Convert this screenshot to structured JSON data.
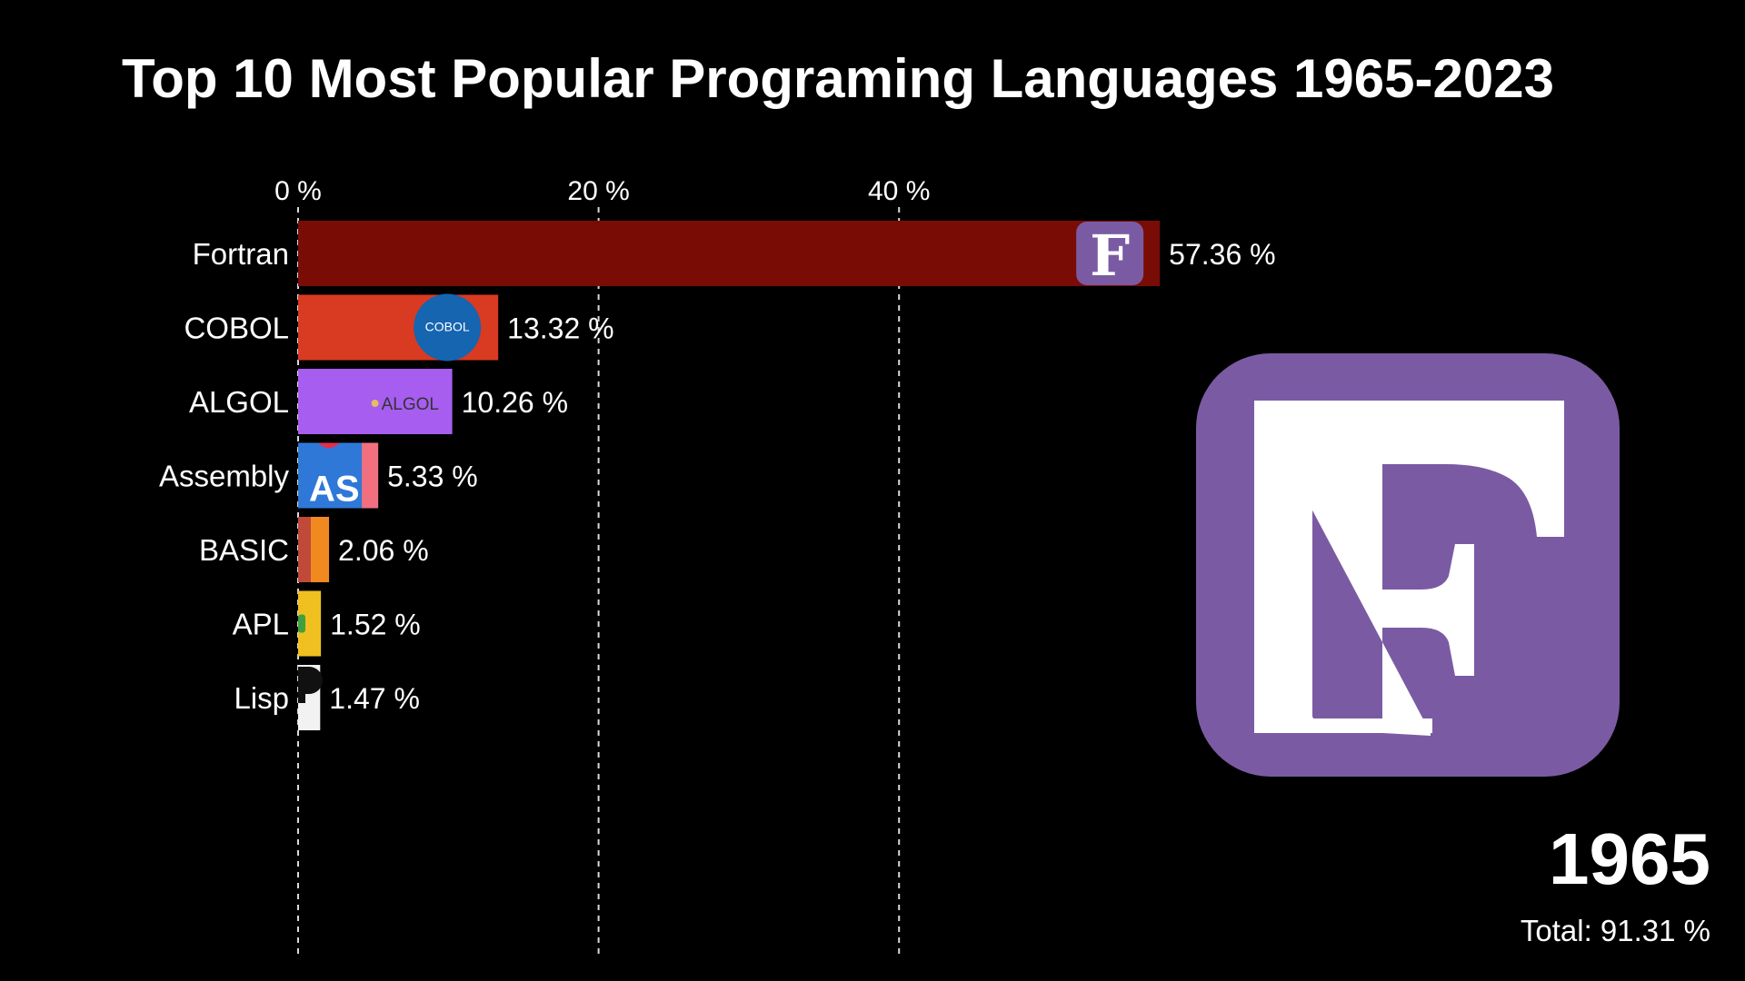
{
  "title": "Top 10 Most Popular Programing Languages 1965-2023",
  "chart_data": {
    "type": "bar",
    "orientation": "horizontal",
    "categories": [
      "Fortran",
      "COBOL",
      "ALGOL",
      "Assembly",
      "BASIC",
      "APL",
      "Lisp"
    ],
    "values": [
      57.36,
      13.32,
      10.26,
      5.33,
      2.06,
      1.52,
      1.47
    ],
    "value_labels": [
      "57.36 %",
      "13.32 %",
      "10.26 %",
      "5.33 %",
      "2.06 %",
      "1.52 %",
      "1.47 %"
    ],
    "colors": [
      "#7a0c06",
      "#d93a22",
      "#a75df0",
      "#2f78d8",
      "#f08a20",
      "#f0c020",
      "#f2f2f2"
    ],
    "x_ticks": [
      0,
      20,
      40
    ],
    "x_tick_labels": [
      "0 %",
      "20 %",
      "40 %"
    ],
    "x_axis_position": "top",
    "grid": "dashed vertical",
    "xlim": [
      0,
      60
    ],
    "units": "%"
  },
  "bar_logos": {
    "fortran": "F",
    "cobol": "COBOL",
    "algol": "ALGOL",
    "assembly": "AS"
  },
  "featured": {
    "logo_letter": "F",
    "logo_color": "#7a5ba3"
  },
  "year": "1965",
  "total_label": "Total: 91.31 %"
}
